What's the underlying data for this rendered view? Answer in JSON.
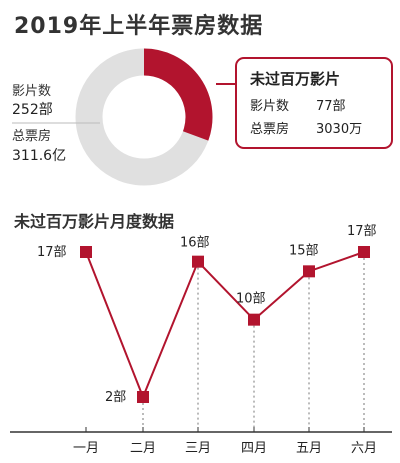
{
  "title": "2019年上半年票房数据",
  "donut": {
    "total_films_label": "影片数",
    "total_films_value": "252部",
    "total_box_label": "总票房",
    "total_box_value": "311.6亿",
    "highlight_fraction": 0.306,
    "colors": {
      "highlight": "#b2142e",
      "rest": "#e0e0e0"
    }
  },
  "callout": {
    "title": "未过百万影片",
    "films_label": "影片数",
    "films_value": "77部",
    "box_label": "总票房",
    "box_value": "3030万",
    "border_color": "#b2142e"
  },
  "subtitle": "未过百万影片月度数据",
  "chart_data": {
    "type": "line",
    "title": "未过百万影片月度数据",
    "categories": [
      "一月",
      "二月",
      "三月",
      "四月",
      "五月",
      "六月"
    ],
    "values": [
      17,
      2,
      16,
      10,
      15,
      17
    ],
    "value_labels": [
      "17部",
      "2部",
      "16部",
      "10部",
      "15部",
      "17部"
    ],
    "color": "#b2142e",
    "ylim": [
      2,
      17
    ]
  }
}
